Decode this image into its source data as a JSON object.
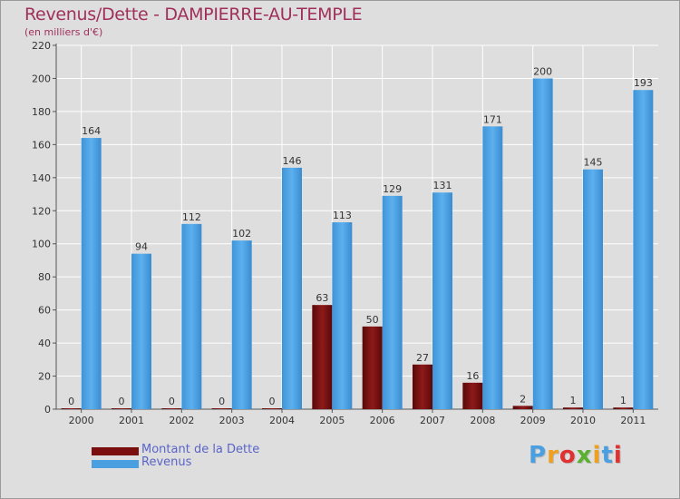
{
  "header": {
    "title": "Revenus/Dette - DAMPIERRE-AU-TEMPLE",
    "subtitle": "(en milliers d'€)"
  },
  "colors": {
    "debt": "#7b0f10",
    "revenue": "#4a9fe0",
    "title": "#a0305a",
    "legend_text": "#5a64c8",
    "background": "#dedede"
  },
  "chart_data": {
    "type": "bar",
    "categories": [
      "2000",
      "2001",
      "2002",
      "2003",
      "2004",
      "2005",
      "2006",
      "2007",
      "2008",
      "2009",
      "2010",
      "2011"
    ],
    "series": [
      {
        "name": "Montant de la Dette",
        "values": [
          0,
          0,
          0,
          0,
          0,
          63,
          50,
          27,
          16,
          2,
          1,
          1
        ]
      },
      {
        "name": "Revenus",
        "values": [
          164,
          94,
          112,
          102,
          146,
          113,
          129,
          131,
          171,
          200,
          145,
          193
        ]
      }
    ],
    "ylim": [
      0,
      220
    ],
    "yticks": [
      0,
      20,
      40,
      60,
      80,
      100,
      120,
      140,
      160,
      180,
      200,
      220
    ],
    "grid": true,
    "legend_position": "bottom-left"
  },
  "legend": [
    {
      "label": "Montant de la Dette",
      "color": "#7b0f10"
    },
    {
      "label": "Revenus",
      "color": "#4a9fe0"
    }
  ],
  "logo": {
    "text": "Proxiti",
    "letter_colors": [
      "#4a9fe0",
      "#f0a020",
      "#e03030",
      "#5ab030",
      "#f0a020",
      "#4a9fe0",
      "#e03030"
    ]
  }
}
